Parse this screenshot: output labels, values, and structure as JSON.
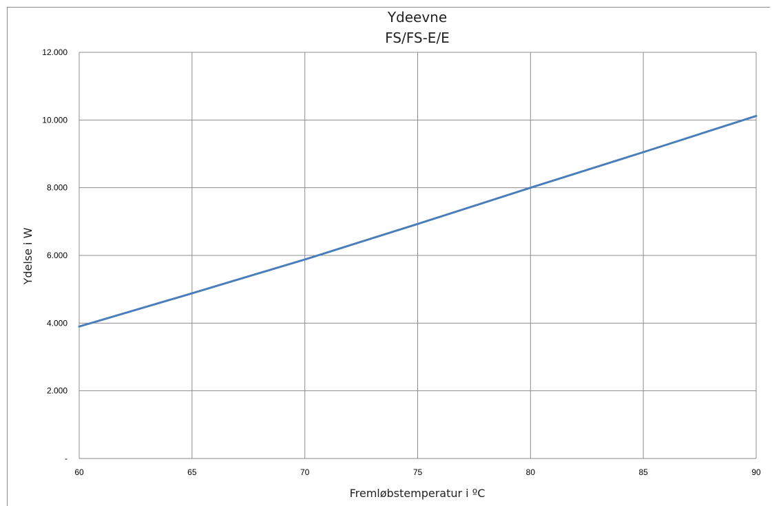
{
  "chart_data": {
    "type": "line",
    "title": "Ydeevne",
    "subtitle": "FS/FS-E/E",
    "xlabel": "Fremløbstemperatur i ºC",
    "ylabel": "Ydelse i W",
    "xlim": [
      60,
      90
    ],
    "ylim": [
      0,
      12000
    ],
    "x_ticks": [
      60,
      65,
      70,
      75,
      80,
      85,
      90
    ],
    "x_tick_labels": [
      "60",
      "65",
      "70",
      "75",
      "80",
      "85",
      "90"
    ],
    "y_ticks": [
      0,
      2000,
      4000,
      6000,
      8000,
      10000,
      12000
    ],
    "y_tick_labels": [
      "-",
      "2.000",
      "4.000",
      "6.000",
      "8.000",
      "10.000",
      "12.000"
    ],
    "grid": true,
    "legend": "none",
    "series": [
      {
        "color": "#4a7ebb",
        "x": [
          60,
          65,
          70,
          75,
          80,
          85,
          90
        ],
        "y": [
          3900,
          4880,
          5880,
          6930,
          8000,
          9050,
          10120
        ]
      }
    ]
  }
}
